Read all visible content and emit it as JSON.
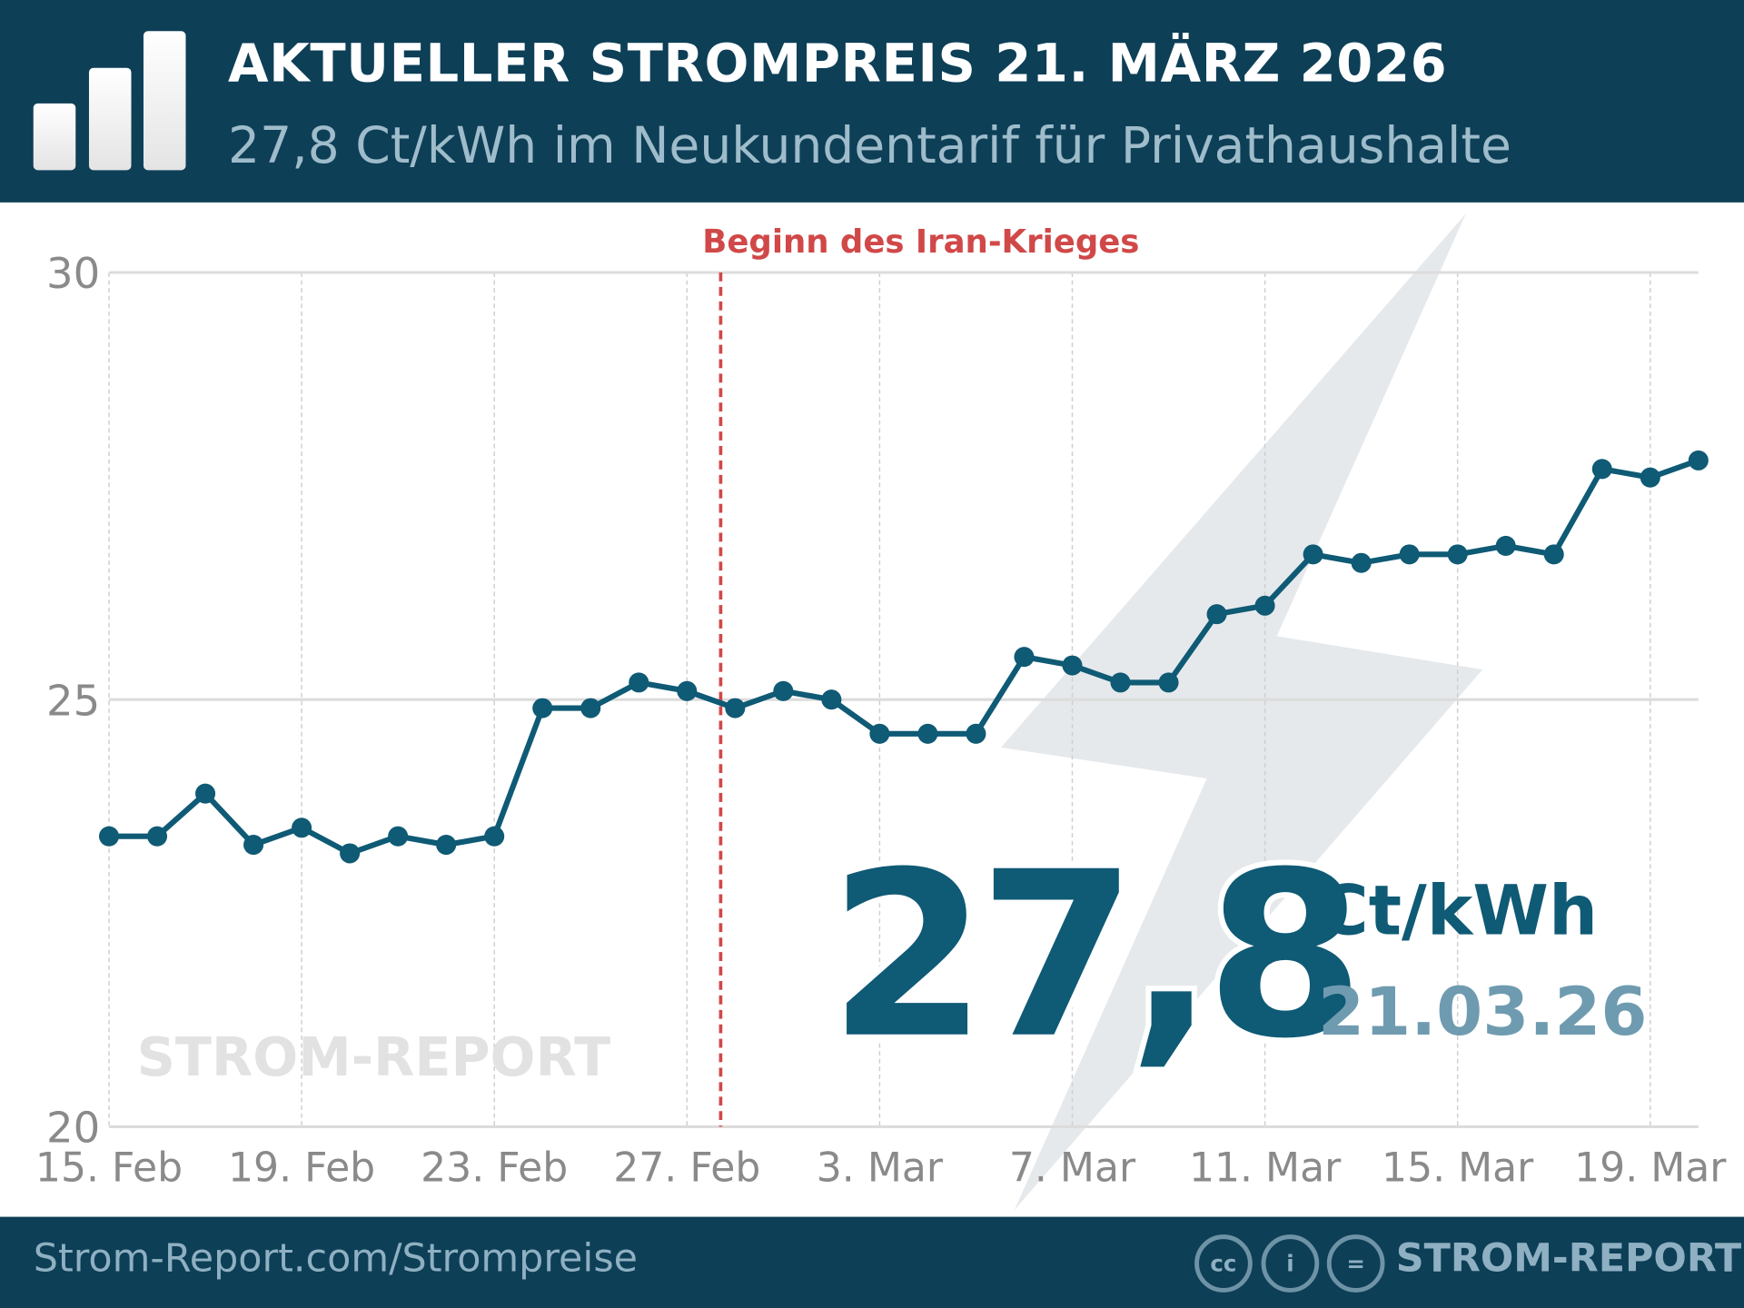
{
  "header": {
    "title": "AKTUELLER STROMPREIS 21. MÄRZ 2026",
    "subtitle": "27,8 Ct/kWh im Neukundentarif für Privathaushalte",
    "logo_icon": "bar-chart-icon"
  },
  "footer": {
    "url": "Strom-Report.com/Strompreise",
    "brand": "STROM-REPORT",
    "license_icons": [
      "cc-icon",
      "by-icon",
      "nd-icon"
    ]
  },
  "watermark": "STROM-REPORT",
  "highlight": {
    "value": "27,8",
    "unit": "Ct/kWh",
    "date": "21.03.26"
  },
  "colors": {
    "header": "#0d3f57",
    "line": "#0f5a75",
    "annotation": "#d04848",
    "date": "#6f9bb0"
  },
  "chart_data": {
    "type": "line",
    "title": "",
    "xlabel": "",
    "ylabel": "",
    "ylim": [
      20,
      30
    ],
    "yticks": [
      "20",
      "25",
      "30"
    ],
    "grid": true,
    "xtick_labels": [
      "15. Feb",
      "19. Feb",
      "23. Feb",
      "27. Feb",
      "3. Mar",
      "7. Mar",
      "11. Mar",
      "15. Mar",
      "19. Mar"
    ],
    "x": [
      "15. Feb",
      "16. Feb",
      "17. Feb",
      "18. Feb",
      "19. Feb",
      "20. Feb",
      "21. Feb",
      "22. Feb",
      "23. Feb",
      "24. Feb",
      "25. Feb",
      "26. Feb",
      "27. Feb",
      "28. Feb",
      "1. Mar",
      "2. Mar",
      "3. Mar",
      "4. Mar",
      "5. Mar",
      "6. Mar",
      "7. Mar",
      "8. Mar",
      "9. Mar",
      "10. Mar",
      "11. Mar",
      "12. Mar",
      "13. Mar",
      "14. Mar",
      "15. Mar",
      "16. Mar",
      "17. Mar",
      "18. Mar",
      "19. Mar",
      "20. Mar"
    ],
    "values": [
      23.4,
      23.4,
      23.9,
      23.3,
      23.5,
      23.2,
      23.4,
      23.3,
      23.4,
      24.9,
      24.9,
      25.2,
      25.1,
      24.9,
      25.1,
      25.0,
      24.6,
      24.6,
      24.6,
      25.5,
      25.4,
      25.2,
      25.2,
      26.0,
      26.1,
      26.7,
      26.6,
      26.7,
      26.7,
      26.8,
      26.7,
      27.7,
      27.6,
      27.8
    ],
    "annotation": {
      "label": "Beginn des Iran-Krieges",
      "x": "27.7 days index 12.7"
    }
  }
}
